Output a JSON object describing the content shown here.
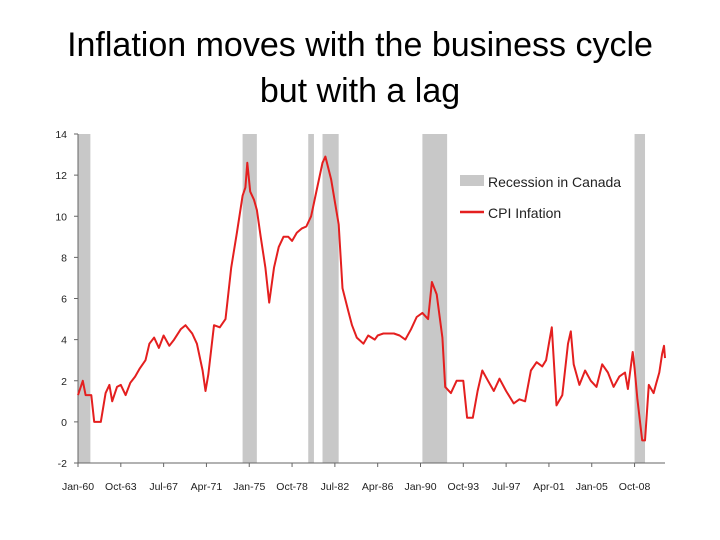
{
  "title_line1": "Inflation moves with the business cycle",
  "title_line2": "but with a lag",
  "chart_data": {
    "type": "line",
    "title": "Inflation moves with the business cycle but with a lag",
    "ylim": [
      -2,
      14
    ],
    "yticks": [
      -2,
      0,
      2,
      4,
      6,
      8,
      10,
      12,
      14
    ],
    "xlim": [
      "1960-01",
      "2011-06"
    ],
    "xticks": [
      {
        "label": "Jan-60",
        "date": "1960-01"
      },
      {
        "label": "Oct-63",
        "date": "1963-10"
      },
      {
        "label": "Jul-67",
        "date": "1967-07"
      },
      {
        "label": "Apr-71",
        "date": "1971-04"
      },
      {
        "label": "Jan-75",
        "date": "1975-01"
      },
      {
        "label": "Oct-78",
        "date": "1978-10"
      },
      {
        "label": "Jul-82",
        "date": "1982-07"
      },
      {
        "label": "Apr-86",
        "date": "1986-04"
      },
      {
        "label": "Jan-90",
        "date": "1990-01"
      },
      {
        "label": "Oct-93",
        "date": "1993-10"
      },
      {
        "label": "Jul-97",
        "date": "1997-07"
      },
      {
        "label": "Apr-01",
        "date": "2001-04"
      },
      {
        "label": "Jan-05",
        "date": "2005-01"
      },
      {
        "label": "Oct-08",
        "date": "2008-10"
      }
    ],
    "grid": false,
    "legend_position": "top-right",
    "recessions": {
      "name": "Recession in Canada",
      "color": "#c8c8c8",
      "periods": [
        [
          "1960-01",
          "1961-02"
        ],
        [
          "1974-06",
          "1975-09"
        ],
        [
          "1980-03",
          "1980-09"
        ],
        [
          "1981-06",
          "1982-11"
        ],
        [
          "1990-03",
          "1992-05"
        ],
        [
          "2008-10",
          "2009-09"
        ]
      ]
    },
    "series": [
      {
        "name": "CPI Infation",
        "color": "#e41f1f",
        "points": [
          [
            "1960-01",
            1.3
          ],
          [
            "1960-06",
            2.0
          ],
          [
            "1960-09",
            1.3
          ],
          [
            "1961-03",
            1.3
          ],
          [
            "1961-06",
            0.0
          ],
          [
            "1962-01",
            0.0
          ],
          [
            "1962-06",
            1.4
          ],
          [
            "1962-10",
            1.8
          ],
          [
            "1963-01",
            1.0
          ],
          [
            "1963-06",
            1.7
          ],
          [
            "1963-10",
            1.8
          ],
          [
            "1964-03",
            1.3
          ],
          [
            "1964-08",
            1.9
          ],
          [
            "1965-01",
            2.2
          ],
          [
            "1965-06",
            2.6
          ],
          [
            "1965-12",
            3.0
          ],
          [
            "1966-04",
            3.8
          ],
          [
            "1966-09",
            4.1
          ],
          [
            "1967-02",
            3.6
          ],
          [
            "1967-07",
            4.2
          ],
          [
            "1968-01",
            3.7
          ],
          [
            "1968-06",
            4.0
          ],
          [
            "1969-01",
            4.5
          ],
          [
            "1969-06",
            4.7
          ],
          [
            "1970-01",
            4.3
          ],
          [
            "1970-06",
            3.8
          ],
          [
            "1970-12",
            2.5
          ],
          [
            "1971-03",
            1.5
          ],
          [
            "1971-06",
            2.3
          ],
          [
            "1971-12",
            4.7
          ],
          [
            "1972-06",
            4.6
          ],
          [
            "1972-12",
            5.0
          ],
          [
            "1973-06",
            7.5
          ],
          [
            "1973-12",
            9.2
          ],
          [
            "1974-06",
            11.0
          ],
          [
            "1974-09",
            11.4
          ],
          [
            "1974-11",
            12.6
          ],
          [
            "1975-02",
            11.2
          ],
          [
            "1975-06",
            10.8
          ],
          [
            "1975-09",
            10.3
          ],
          [
            "1976-01",
            9.0
          ],
          [
            "1976-06",
            7.5
          ],
          [
            "1976-10",
            5.8
          ],
          [
            "1977-03",
            7.5
          ],
          [
            "1977-08",
            8.5
          ],
          [
            "1978-01",
            9.0
          ],
          [
            "1978-06",
            9.0
          ],
          [
            "1978-10",
            8.8
          ],
          [
            "1979-03",
            9.2
          ],
          [
            "1979-08",
            9.4
          ],
          [
            "1980-01",
            9.5
          ],
          [
            "1980-06",
            10.0
          ],
          [
            "1980-12",
            11.3
          ],
          [
            "1981-06",
            12.6
          ],
          [
            "1981-09",
            12.9
          ],
          [
            "1982-03",
            11.8
          ],
          [
            "1982-07",
            10.7
          ],
          [
            "1982-11",
            9.6
          ],
          [
            "1983-03",
            6.5
          ],
          [
            "1983-09",
            5.4
          ],
          [
            "1984-01",
            4.7
          ],
          [
            "1984-06",
            4.1
          ],
          [
            "1985-01",
            3.8
          ],
          [
            "1985-06",
            4.2
          ],
          [
            "1986-01",
            4.0
          ],
          [
            "1986-04",
            4.2
          ],
          [
            "1986-10",
            4.3
          ],
          [
            "1987-03",
            4.3
          ],
          [
            "1987-09",
            4.3
          ],
          [
            "1988-03",
            4.2
          ],
          [
            "1988-09",
            4.0
          ],
          [
            "1989-03",
            4.5
          ],
          [
            "1989-09",
            5.1
          ],
          [
            "1990-03",
            5.3
          ],
          [
            "1990-09",
            5.0
          ],
          [
            "1991-01",
            6.8
          ],
          [
            "1991-06",
            6.2
          ],
          [
            "1991-12",
            4.1
          ],
          [
            "1992-03",
            1.7
          ],
          [
            "1992-09",
            1.4
          ],
          [
            "1993-03",
            2.0
          ],
          [
            "1993-10",
            2.0
          ],
          [
            "1994-02",
            0.2
          ],
          [
            "1994-08",
            0.2
          ],
          [
            "1995-01",
            1.5
          ],
          [
            "1995-06",
            2.5
          ],
          [
            "1995-12",
            2.0
          ],
          [
            "1996-06",
            1.5
          ],
          [
            "1996-12",
            2.1
          ],
          [
            "1997-07",
            1.5
          ],
          [
            "1998-03",
            0.9
          ],
          [
            "1998-09",
            1.1
          ],
          [
            "1999-03",
            1.0
          ],
          [
            "1999-09",
            2.5
          ],
          [
            "2000-03",
            2.9
          ],
          [
            "2000-09",
            2.7
          ],
          [
            "2001-01",
            3.0
          ],
          [
            "2001-04",
            3.8
          ],
          [
            "2001-07",
            4.6
          ],
          [
            "2001-12",
            0.8
          ],
          [
            "2002-06",
            1.3
          ],
          [
            "2002-12",
            3.8
          ],
          [
            "2003-03",
            4.4
          ],
          [
            "2003-06",
            2.8
          ],
          [
            "2003-12",
            1.8
          ],
          [
            "2004-06",
            2.5
          ],
          [
            "2004-12",
            2.0
          ],
          [
            "2005-06",
            1.7
          ],
          [
            "2005-12",
            2.8
          ],
          [
            "2006-06",
            2.4
          ],
          [
            "2006-12",
            1.7
          ],
          [
            "2007-06",
            2.2
          ],
          [
            "2007-12",
            2.4
          ],
          [
            "2008-03",
            1.6
          ],
          [
            "2008-08",
            3.4
          ],
          [
            "2008-10",
            2.6
          ],
          [
            "2009-01",
            1.1
          ],
          [
            "2009-06",
            -0.9
          ],
          [
            "2009-09",
            -0.9
          ],
          [
            "2010-01",
            1.8
          ],
          [
            "2010-06",
            1.4
          ],
          [
            "2010-09",
            1.9
          ],
          [
            "2010-12",
            2.4
          ],
          [
            "2011-03",
            3.3
          ],
          [
            "2011-05",
            3.7
          ],
          [
            "2011-06",
            3.1
          ]
        ]
      }
    ]
  }
}
